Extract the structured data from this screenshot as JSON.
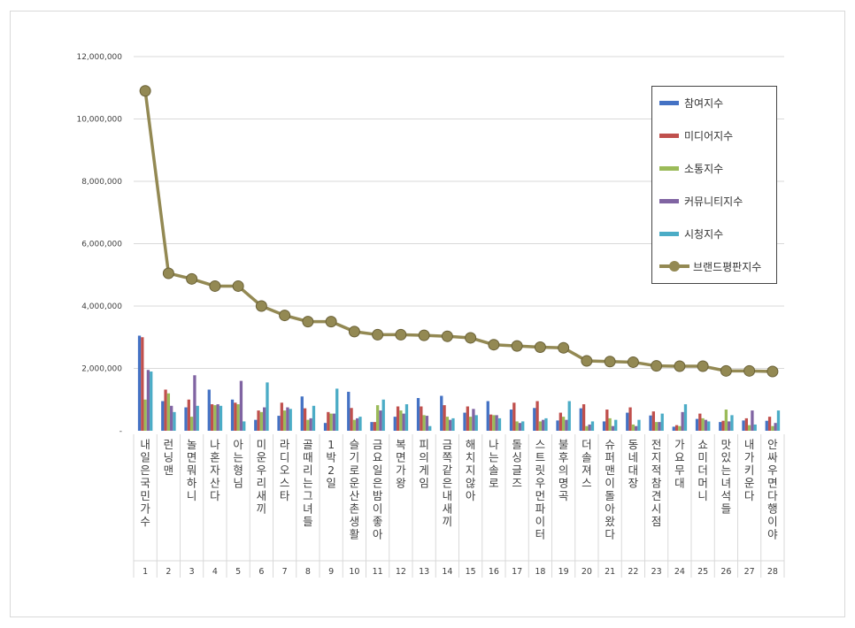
{
  "chart_data": {
    "type": "bar",
    "title": "",
    "xlabel": "",
    "ylabel": "",
    "ylim": [
      0,
      12000000
    ],
    "yticks": [
      "-",
      "2,000,000",
      "4,000,000",
      "6,000,000",
      "8,000,000",
      "10,000,000",
      "12,000,000"
    ],
    "grid": true,
    "legend_position": "top-right",
    "categories": [
      "내일은 국민가수",
      "런닝맨",
      "놀면 뭐하니",
      "나혼자산다",
      "아는형님",
      "미운우리새끼",
      "라디오스타",
      "골때리는그녀들",
      "1박 2일",
      "슬기로운산촌생활",
      "금요일은밤이 좋아",
      "복면가왕",
      "피의 게임",
      "금쪽같은내새끼",
      "해치지않아",
      "나는 솔로",
      "돌싱글즈",
      "스트릿우먼파이터",
      "불후의 명곡",
      "더 솔져스",
      "슈퍼맨이 돌아왔다",
      "동네 대장",
      "전지적참견시점",
      "가요무대",
      "쇼미더머니",
      "맛있는 녀석들",
      "내가 키운다",
      "안싸우면다행이야"
    ],
    "rank_labels": [
      "1",
      "2",
      "3",
      "4",
      "5",
      "6",
      "7",
      "8",
      "9",
      "10",
      "11",
      "12",
      "13",
      "14",
      "15",
      "16",
      "17",
      "18",
      "19",
      "20",
      "21",
      "22",
      "23",
      "24",
      "25",
      "26",
      "27",
      "28"
    ],
    "series": [
      {
        "name": "참여지수",
        "color": "#4472c4",
        "type": "bar",
        "values": [
          3050000,
          950000,
          750000,
          1320000,
          1000000,
          350000,
          480000,
          1100000,
          250000,
          1250000,
          280000,
          450000,
          1050000,
          1120000,
          580000,
          950000,
          680000,
          730000,
          330000,
          720000,
          300000,
          580000,
          490000,
          130000,
          380000,
          280000,
          330000,
          320000
        ]
      },
      {
        "name": "미디어지수",
        "color": "#c0504d",
        "type": "bar",
        "values": [
          3000000,
          1320000,
          1000000,
          850000,
          900000,
          650000,
          900000,
          720000,
          600000,
          730000,
          280000,
          780000,
          780000,
          820000,
          780000,
          520000,
          900000,
          950000,
          580000,
          850000,
          680000,
          750000,
          620000,
          180000,
          550000,
          320000,
          400000,
          450000
        ]
      },
      {
        "name": "소통지수",
        "color": "#9bbb59",
        "type": "bar",
        "values": [
          1000000,
          1200000,
          450000,
          820000,
          850000,
          600000,
          650000,
          350000,
          550000,
          350000,
          820000,
          650000,
          500000,
          450000,
          450000,
          500000,
          300000,
          300000,
          450000,
          150000,
          400000,
          200000,
          280000,
          150000,
          400000,
          680000,
          180000,
          150000
        ]
      },
      {
        "name": "커뮤니티지수",
        "color": "#8064a2",
        "type": "bar",
        "values": [
          1950000,
          800000,
          1780000,
          850000,
          1600000,
          750000,
          750000,
          400000,
          550000,
          400000,
          650000,
          550000,
          480000,
          350000,
          700000,
          500000,
          250000,
          350000,
          350000,
          200000,
          150000,
          150000,
          280000,
          600000,
          350000,
          300000,
          650000,
          250000
        ]
      },
      {
        "name": "시청지수",
        "color": "#4bacc6",
        "type": "bar",
        "values": [
          1900000,
          600000,
          800000,
          800000,
          300000,
          1550000,
          700000,
          800000,
          1350000,
          450000,
          1000000,
          850000,
          150000,
          400000,
          500000,
          400000,
          300000,
          400000,
          950000,
          300000,
          350000,
          350000,
          550000,
          850000,
          300000,
          500000,
          200000,
          650000
        ]
      },
      {
        "name": "브랜드평판지수",
        "color": "#938953",
        "type": "line",
        "values": [
          10900000,
          5050000,
          4870000,
          4640000,
          4640000,
          4000000,
          3700000,
          3500000,
          3500000,
          3180000,
          3080000,
          3080000,
          3060000,
          3030000,
          2980000,
          2760000,
          2720000,
          2680000,
          2660000,
          2240000,
          2220000,
          2200000,
          2080000,
          2070000,
          2070000,
          1920000,
          1920000,
          1900000
        ]
      }
    ]
  }
}
